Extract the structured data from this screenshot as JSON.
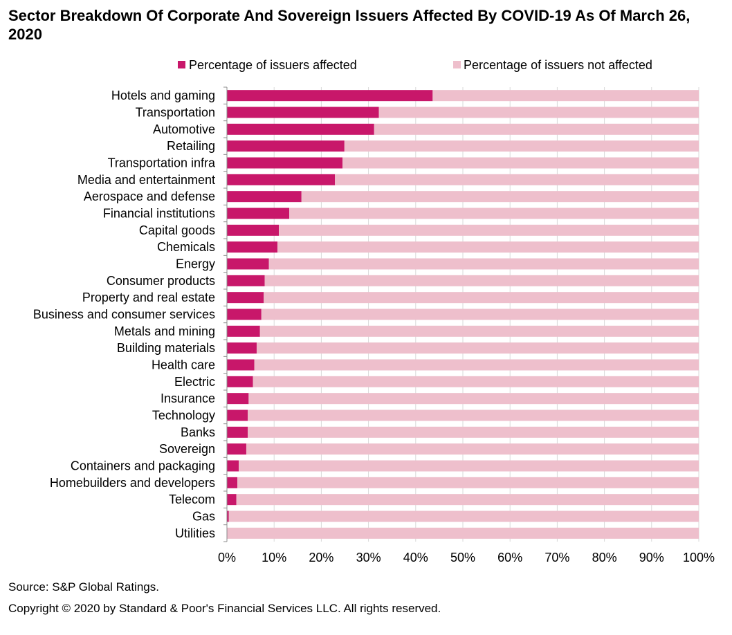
{
  "title": "Sector Breakdown Of Corporate And Sovereign Issuers Affected By COVID-19 As Of March 26, 2020",
  "source": "Source: S&P Global Ratings.",
  "copyright": "Copyright © 2020 by Standard & Poor's Financial Services LLC. All rights reserved.",
  "colors": {
    "affected": "#C8176A",
    "not_affected": "#EEBFCC",
    "axis": "#8C8C8C",
    "grid": "#D9D9D9"
  },
  "chart_data": {
    "type": "bar",
    "orientation": "horizontal",
    "stacked": true,
    "legend_position": "top",
    "xlim": [
      0,
      100
    ],
    "x_ticks": [
      "0%",
      "10%",
      "20%",
      "30%",
      "40%",
      "50%",
      "60%",
      "70%",
      "80%",
      "90%",
      "100%"
    ],
    "categories": [
      "Hotels and gaming",
      "Transportation",
      "Automotive",
      "Retailing",
      "Transportation infra",
      "Media and entertainment",
      "Aerospace and defense",
      "Financial institutions",
      "Capital goods",
      "Chemicals",
      "Energy",
      "Consumer products",
      "Property and real estate",
      "Business and consumer services",
      "Metals and mining",
      "Building materials",
      "Health care",
      "Electric",
      "Insurance",
      "Technology",
      "Banks",
      "Sovereign",
      "Containers and packaging",
      "Homebuilders and developers",
      "Telecom",
      "Gas",
      "Utilities"
    ],
    "series": [
      {
        "name": "Percentage of issuers affected",
        "values": [
          43.6,
          32.2,
          31.2,
          24.9,
          24.5,
          22.9,
          15.8,
          13.2,
          11.0,
          10.7,
          8.9,
          8.0,
          7.8,
          7.3,
          7.0,
          6.3,
          5.8,
          5.5,
          4.6,
          4.4,
          4.4,
          4.1,
          2.5,
          2.2,
          2.0,
          0.4,
          0.1
        ]
      },
      {
        "name": "Percentage of issuers not affected",
        "values": [
          56.4,
          67.8,
          68.8,
          75.1,
          75.5,
          77.1,
          84.2,
          86.8,
          89.0,
          89.3,
          91.1,
          92.0,
          92.2,
          92.7,
          93.0,
          93.7,
          94.2,
          94.5,
          95.4,
          95.6,
          95.6,
          95.9,
          97.5,
          97.8,
          98.0,
          99.6,
          99.9
        ]
      }
    ]
  }
}
